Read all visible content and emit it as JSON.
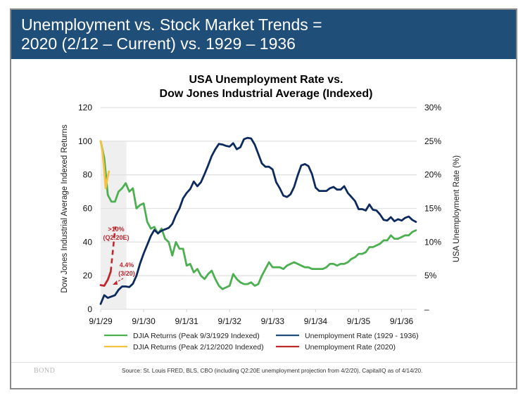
{
  "slide": {
    "title_line1": "Unemployment vs. Stock Market Trends =",
    "title_line2": "2020 (2/12 – Current) vs. 1929 – 1936",
    "logo": "BOND",
    "source": "Source: St. Louis FRED, BLS, CBO (including Q2:20E unemployment projection from 4/2/20), CapitalIQ as of 4/14/20."
  },
  "chart_data": {
    "type": "line",
    "title_line1": "USA Unemployment Rate vs.",
    "title_line2": "Dow Jones Industrial Average (Indexed)",
    "xlabel": "",
    "ylabel": "Dow Jones Industrial Average Indexed Returns",
    "y2label": "USA Unemployment Rate (%)",
    "ylim": [
      0,
      120
    ],
    "y2lim": [
      0,
      30
    ],
    "yticks": [
      "0",
      "20",
      "40",
      "60",
      "80",
      "100",
      "120"
    ],
    "y2ticks": [
      "–",
      "5%",
      "10%",
      "15%",
      "20%",
      "25%",
      "30%"
    ],
    "xticks": [
      "9/1/29",
      "9/1/30",
      "9/1/31",
      "9/1/32",
      "9/1/33",
      "9/1/34",
      "9/1/35",
      "9/1/36"
    ],
    "x_unit": "months since 9/1/1929 (shared index for 2020 series starting 2/12/2020)",
    "x_range_months": [
      0,
      88
    ],
    "shaded_region_months": [
      0,
      7.2
    ],
    "grid": "horizontal",
    "legend_position": "bottom",
    "colors": {
      "djia_1929": "#4caf50",
      "djia_2020": "#f5c242",
      "unemp_1929": "#0d2a5e",
      "unemp_2020": "#c0272d",
      "shade": "#efefef",
      "grid": "#e2e2e2"
    },
    "series": [
      {
        "name": "DJIA Returns (Peak 9/3/1929 Indexed)",
        "axis": "left",
        "key": "djia_1929",
        "x": [
          0,
          1,
          2,
          3,
          4,
          5,
          6,
          7,
          8,
          9,
          10,
          11,
          12,
          13,
          14,
          15,
          16,
          17,
          18,
          19,
          20,
          21,
          22,
          23,
          24,
          25,
          26,
          27,
          28,
          29,
          30,
          31,
          32,
          33,
          34,
          35,
          36,
          37,
          38,
          39,
          40,
          41,
          42,
          43,
          44,
          45,
          46,
          47,
          48,
          49,
          50,
          51,
          52,
          53,
          54,
          55,
          56,
          57,
          58,
          59,
          60,
          61,
          62,
          63,
          64,
          65,
          66,
          67,
          68,
          69,
          70,
          71,
          72,
          73,
          74,
          75,
          76,
          77,
          78,
          79,
          80,
          81,
          82,
          83,
          84,
          85,
          86,
          87,
          88
        ],
        "values": [
          100,
          90,
          68,
          64,
          64,
          70,
          72,
          75,
          70,
          72,
          60,
          62,
          63,
          52,
          48,
          49,
          45,
          48,
          42,
          40,
          32,
          40,
          36,
          36,
          26,
          27,
          22,
          24,
          20,
          18,
          21,
          23,
          18,
          14,
          12,
          13,
          14,
          21,
          18,
          16,
          15,
          15,
          16,
          14,
          15,
          20,
          24,
          28,
          25,
          25,
          25,
          24,
          26,
          27,
          28,
          27,
          26,
          25,
          25,
          24,
          24,
          24,
          24,
          25,
          27,
          27,
          26,
          27,
          27,
          28,
          30,
          31,
          33,
          33,
          34,
          37,
          37,
          38,
          39,
          41,
          41,
          44,
          42,
          42,
          43,
          44,
          44,
          46,
          47
        ]
      },
      {
        "name": "DJIA Returns (Peak 2/12/2020 Indexed)",
        "axis": "left",
        "key": "djia_2020",
        "x": [
          0,
          0.5,
          1.0,
          1.4,
          1.8,
          2.3
        ],
        "values": [
          100,
          94,
          83,
          72,
          77,
          82
        ]
      },
      {
        "name": "Unemployment Rate (1929 - 1936)",
        "axis": "right",
        "key": "unemp_1929",
        "x": [
          0,
          1,
          2,
          3,
          4,
          5,
          6,
          7,
          8,
          9,
          10,
          11,
          12,
          13,
          14,
          15,
          16,
          17,
          18,
          19,
          20,
          21,
          22,
          23,
          24,
          25,
          26,
          27,
          28,
          29,
          30,
          31,
          32,
          33,
          34,
          35,
          36,
          37,
          38,
          39,
          40,
          41,
          42,
          43,
          44,
          45,
          46,
          47,
          48,
          49,
          50,
          51,
          52,
          53,
          54,
          55,
          56,
          57,
          58,
          59,
          60,
          61,
          62,
          63,
          64,
          65,
          66,
          67,
          68,
          69,
          70,
          71,
          72,
          73,
          74,
          75,
          76,
          77,
          78,
          79,
          80,
          81,
          82,
          83,
          84,
          85,
          86,
          87,
          88
        ],
        "values": [
          0.8,
          2.1,
          1.7,
          1.9,
          2.1,
          2.9,
          3.4,
          3.4,
          3.3,
          3.8,
          5.0,
          6.8,
          8.3,
          9.6,
          10.9,
          11.8,
          11.3,
          11.7,
          11.9,
          12.1,
          12.7,
          14.0,
          15.0,
          16.5,
          17.3,
          17.9,
          19.0,
          18.3,
          18.9,
          20.1,
          21.4,
          22.8,
          23.8,
          24.6,
          24.5,
          24.3,
          24.2,
          24.7,
          23.8,
          24.1,
          25.3,
          25.5,
          25.4,
          24.5,
          23.1,
          21.7,
          21.2,
          21.2,
          20.8,
          18.9,
          18.0,
          16.9,
          16.7,
          17.1,
          18.2,
          19.9,
          21.4,
          21.6,
          21.3,
          20.1,
          18.1,
          17.6,
          17.6,
          17.6,
          18.0,
          18.2,
          17.8,
          17.8,
          18.3,
          17.3,
          16.7,
          16.1,
          14.9,
          14.9,
          14.7,
          15.6,
          14.8,
          14.7,
          14.1,
          13.3,
          13.2,
          13.7,
          13.1,
          13.4,
          13.2,
          13.6,
          13.8,
          13.3,
          13.0
        ]
      },
      {
        "name": "Unemployment Rate (2020)",
        "axis": "right",
        "key": "unemp_2020",
        "x": [
          0,
          1,
          2,
          2.8
        ],
        "values": [
          3.6,
          3.5,
          4.4,
          5.6
        ],
        "projection": {
          "x": [
            2.8,
            4.1
          ],
          "values": [
            5.6,
            12.3
          ],
          "style": "dashed"
        }
      }
    ],
    "annotations": [
      {
        "text_line1": ">10%",
        "text_line2": "(Q2:20E)",
        "target_series": "Unemployment Rate (2020)"
      },
      {
        "text_line1": "4.4%",
        "text_line2": "(3/20)",
        "target_series": "Unemployment Rate (2020)"
      }
    ],
    "legend": [
      "DJIA Returns (Peak 9/3/1929 Indexed)",
      "Unemployment Rate (1929 - 1936)",
      "DJIA Returns (Peak 2/12/2020 Indexed)",
      "Unemployment Rate (2020)"
    ]
  }
}
